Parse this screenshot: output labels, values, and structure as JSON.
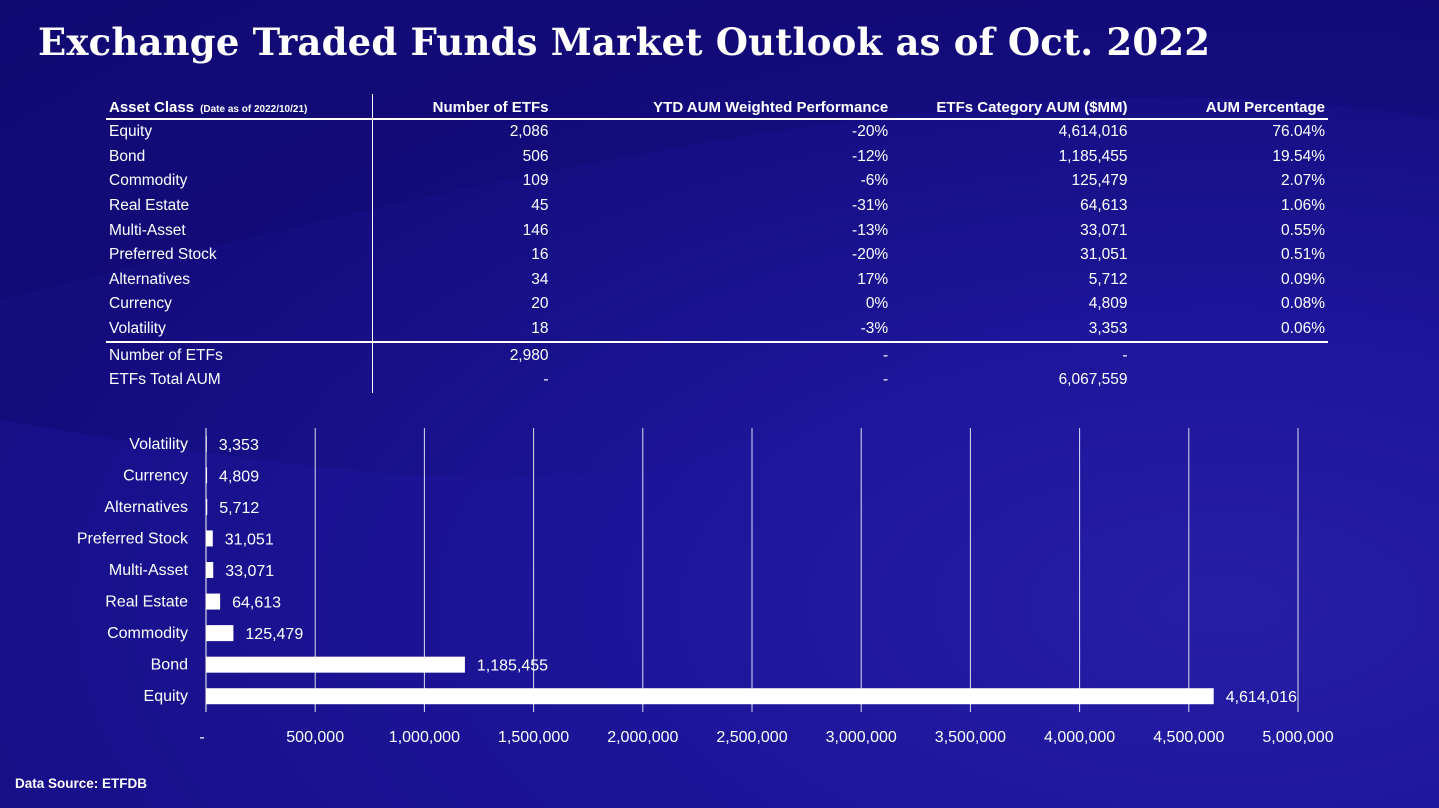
{
  "title": "Exchange Traded Funds Market Outlook as of Oct. 2022",
  "table": {
    "headers": {
      "asset_class": "Asset Class",
      "date_note": "(Date as of 2022/10/21)",
      "num_etfs": "Number of ETFs",
      "ytd_perf": "YTD AUM Weighted Performance",
      "category_aum": "ETFs Category AUM ($MM)",
      "aum_pct": "AUM Percentage"
    },
    "rows": [
      {
        "asset": "Equity",
        "num": "2,086",
        "ytd": "-20%",
        "aum": "4,614,016",
        "pct": "76.04%"
      },
      {
        "asset": "Bond",
        "num": "506",
        "ytd": "-12%",
        "aum": "1,185,455",
        "pct": "19.54%"
      },
      {
        "asset": "Commodity",
        "num": "109",
        "ytd": "-6%",
        "aum": "125,479",
        "pct": "2.07%"
      },
      {
        "asset": "Real Estate",
        "num": "45",
        "ytd": "-31%",
        "aum": "64,613",
        "pct": "1.06%"
      },
      {
        "asset": "Multi-Asset",
        "num": "146",
        "ytd": "-13%",
        "aum": "33,071",
        "pct": "0.55%"
      },
      {
        "asset": "Preferred Stock",
        "num": "16",
        "ytd": "-20%",
        "aum": "31,051",
        "pct": "0.51%"
      },
      {
        "asset": "Alternatives",
        "num": "34",
        "ytd": "17%",
        "aum": "5,712",
        "pct": "0.09%"
      },
      {
        "asset": "Currency",
        "num": "20",
        "ytd": "0%",
        "aum": "4,809",
        "pct": "0.08%"
      },
      {
        "asset": "Volatility",
        "num": "18",
        "ytd": "-3%",
        "aum": "3,353",
        "pct": "0.06%"
      }
    ],
    "totals": [
      {
        "label": "Number of ETFs",
        "num": "2,980",
        "ytd": "-",
        "aum": "-",
        "pct": ""
      },
      {
        "label": "ETFs Total AUM",
        "num": "-",
        "ytd": "-",
        "aum": "6,067,559",
        "pct": ""
      }
    ]
  },
  "chart_data": {
    "type": "bar",
    "orientation": "horizontal",
    "categories": [
      "Equity",
      "Bond",
      "Commodity",
      "Real Estate",
      "Multi-Asset",
      "Preferred Stock",
      "Alternatives",
      "Currency",
      "Volatility"
    ],
    "values": [
      4614016,
      1185455,
      125479,
      64613,
      33071,
      31051,
      5712,
      4809,
      3353
    ],
    "value_labels": [
      "4,614,016",
      "1,185,455",
      "125,479",
      "64,613",
      "33,071",
      "31,051",
      "5,712",
      "4,809",
      "3,353"
    ],
    "xlim": [
      0,
      5000000
    ],
    "x_ticks": [
      0,
      500000,
      1000000,
      1500000,
      2000000,
      2500000,
      3000000,
      3500000,
      4000000,
      4500000,
      5000000
    ],
    "x_tick_labels": [
      "-",
      "500,000",
      "1,000,000",
      "1,500,000",
      "2,000,000",
      "2,500,000",
      "3,000,000",
      "3,500,000",
      "4,000,000",
      "4,500,000",
      "5,000,000"
    ],
    "grid": "vertical",
    "bar_color": "#ffffff",
    "title": "",
    "xlabel": "",
    "ylabel": ""
  },
  "footer": {
    "source": "Data Source: ETFDB"
  },
  "colors": {
    "background": "#160e86",
    "text": "#ffffff"
  }
}
